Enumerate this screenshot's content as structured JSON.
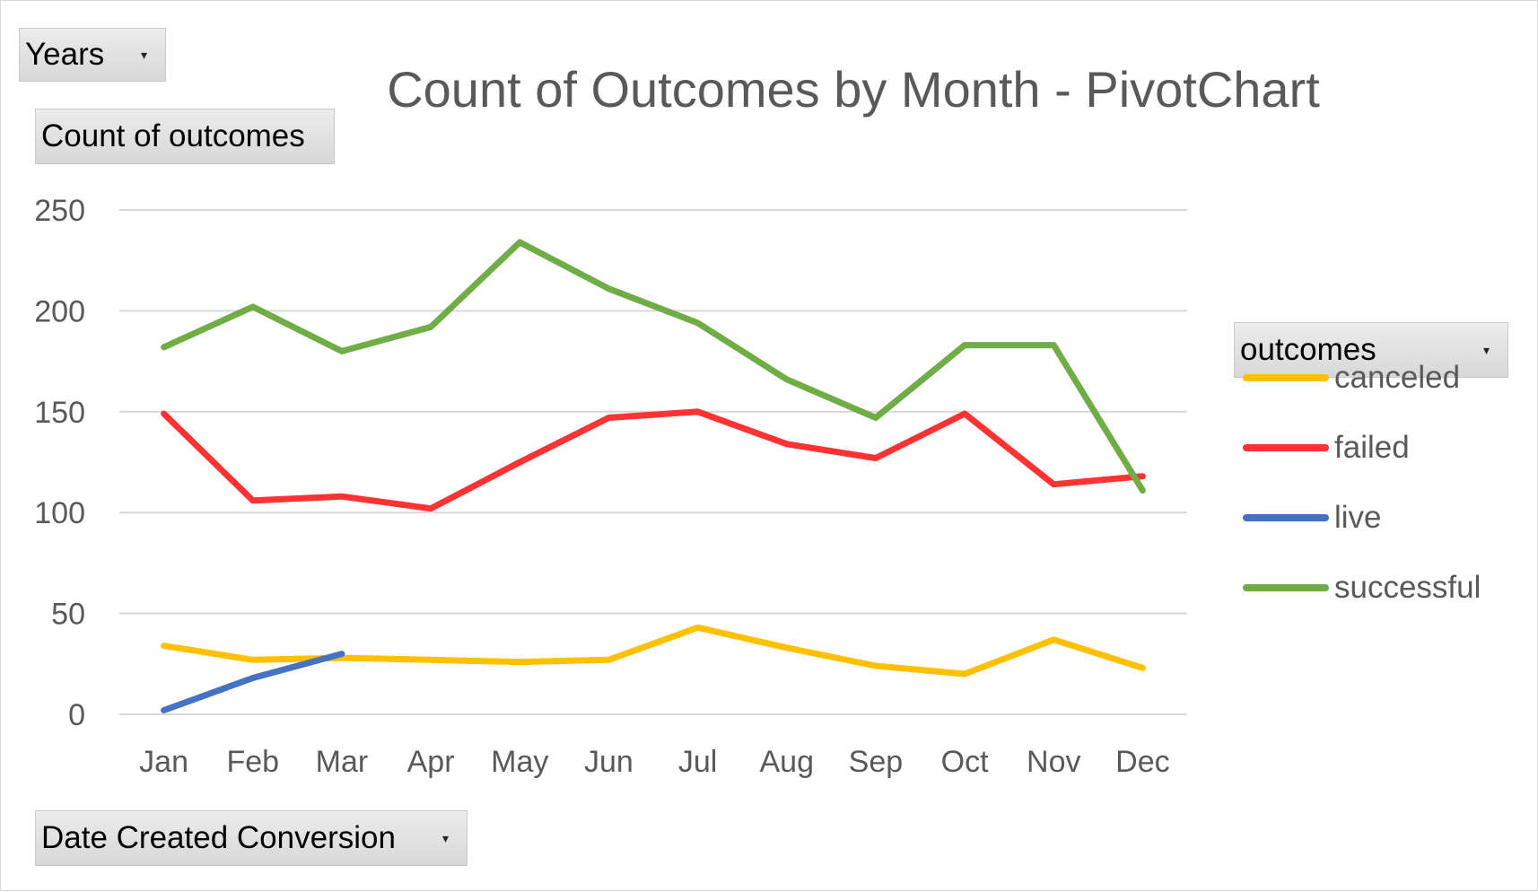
{
  "filters": {
    "years": {
      "label": "Years",
      "icon": "dropdown-arrow-icon"
    },
    "value_field": {
      "label": "Count of outcomes"
    },
    "axis_field": {
      "label": "Date Created Conversion",
      "icon": "dropdown-arrow-icon"
    },
    "legend_field": {
      "label": "outcomes",
      "icon": "dropdown-arrow-icon"
    }
  },
  "chart_data": {
    "type": "line",
    "title": "Count of Outcomes by Month - PivotChart",
    "xlabel": "",
    "ylabel": "",
    "ylim": [
      0,
      250
    ],
    "yticks": [
      0,
      50,
      100,
      150,
      200,
      250
    ],
    "grid": true,
    "legend_position": "right",
    "categories": [
      "Jan",
      "Feb",
      "Mar",
      "Apr",
      "May",
      "Jun",
      "Jul",
      "Aug",
      "Sep",
      "Oct",
      "Nov",
      "Dec"
    ],
    "series": [
      {
        "name": "canceled",
        "color": "#FFC000",
        "values": [
          34,
          27,
          28,
          27,
          26,
          27,
          43,
          33,
          24,
          20,
          37,
          23
        ]
      },
      {
        "name": "failed",
        "color": "#FF3333",
        "values": [
          149,
          106,
          108,
          102,
          125,
          147,
          150,
          134,
          127,
          149,
          114,
          118
        ]
      },
      {
        "name": "live",
        "color": "#4472C4",
        "values": [
          2,
          18,
          30,
          null,
          null,
          null,
          null,
          null,
          null,
          null,
          null,
          null
        ]
      },
      {
        "name": "successful",
        "color": "#70AD47",
        "values": [
          182,
          202,
          180,
          192,
          234,
          211,
          194,
          166,
          147,
          183,
          183,
          111
        ]
      }
    ]
  }
}
